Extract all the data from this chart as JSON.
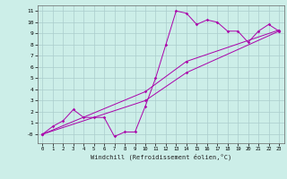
{
  "xlabel": "Windchill (Refroidissement éolien,°C)",
  "background_color": "#cceee8",
  "grid_color": "#aacccc",
  "line_color": "#aa00aa",
  "xlim": [
    -0.5,
    23.5
  ],
  "ylim": [
    -0.8,
    11.5
  ],
  "xticks": [
    0,
    1,
    2,
    3,
    4,
    5,
    6,
    7,
    8,
    9,
    10,
    11,
    12,
    13,
    14,
    15,
    16,
    17,
    18,
    19,
    20,
    21,
    22,
    23
  ],
  "yticks": [
    0,
    1,
    2,
    3,
    4,
    5,
    6,
    7,
    8,
    9,
    10,
    11
  ],
  "ytick_labels": [
    "-0",
    "1",
    "2",
    "3",
    "4",
    "5",
    "6",
    "7",
    "8",
    "9",
    "10",
    "11"
  ],
  "series1_x": [
    0,
    1,
    2,
    3,
    4,
    5,
    6,
    7,
    8,
    9,
    10,
    11,
    12,
    13,
    14,
    15,
    16,
    17,
    18,
    19,
    20,
    21,
    22,
    23
  ],
  "series1_y": [
    0.0,
    0.7,
    1.2,
    2.2,
    1.5,
    1.5,
    1.5,
    -0.2,
    0.2,
    0.2,
    2.5,
    5.0,
    8.0,
    11.0,
    10.8,
    9.8,
    10.2,
    10.0,
    9.2,
    9.2,
    8.2,
    9.2,
    9.8,
    9.2
  ],
  "series2_x": [
    0,
    10,
    14,
    23
  ],
  "series2_y": [
    0.0,
    3.8,
    6.5,
    9.3
  ],
  "series3_x": [
    0,
    10,
    14,
    23
  ],
  "series3_y": [
    0.0,
    3.0,
    5.5,
    9.2
  ]
}
